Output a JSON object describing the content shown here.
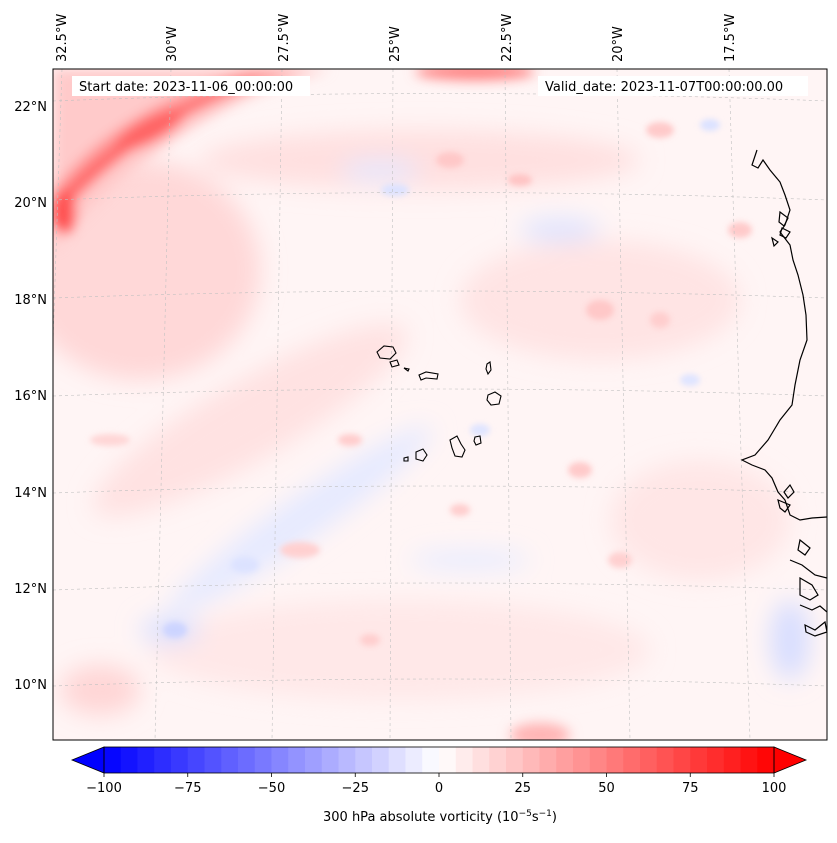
{
  "header": {
    "start_date": "Start date: 2023-11-06_00:00:00",
    "valid_date": "Valid_date: 2023-11-07T00:00:00.00"
  },
  "map": {
    "projection": "lambert-conformal",
    "lon_labels": [
      "32.5°W",
      "30°W",
      "27.5°W",
      "25°W",
      "22.5°W",
      "20°W",
      "17.5°W"
    ],
    "lat_labels": [
      "22°N",
      "20°N",
      "18°N",
      "16°N",
      "14°N",
      "12°N",
      "10°N"
    ],
    "field_colors": {
      "strong_positive": "#ff3030",
      "positive": "#ffb0b0",
      "weak_positive": "#ffe4e4",
      "weak_negative": "#e8ecff",
      "negative": "#c8d0ff"
    },
    "coastline_color": "#000000",
    "gridline_color": "#bbbbbb"
  },
  "colorbar": {
    "label_prefix": "300 hPa absolute vorticity (10",
    "label_exp1": "−5",
    "label_mid": "s",
    "label_exp2": "−1",
    "label_suffix": ")",
    "tick_labels": [
      "−100",
      "−75",
      "−50",
      "−25",
      "0",
      "25",
      "50",
      "75",
      "100"
    ],
    "ticks": [
      -100,
      -75,
      -50,
      -25,
      0,
      25,
      50,
      75,
      100
    ],
    "range": [
      -100,
      100
    ],
    "low_color": "#0000ff",
    "mid_color": "#ffffff",
    "high_color": "#ff0000",
    "extend": "both"
  }
}
